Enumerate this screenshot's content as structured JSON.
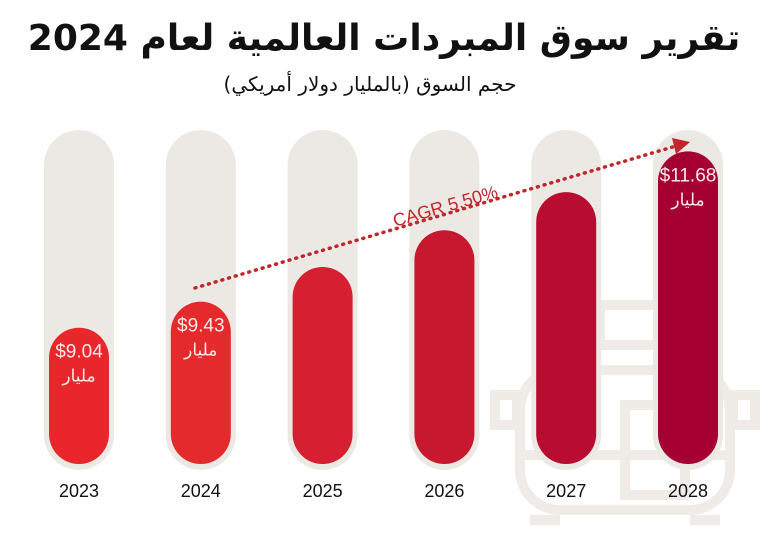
{
  "chart_data": {
    "type": "bar",
    "title": "تقرير سوق المبردات العالمية لعام 2024",
    "subtitle": "حجم السوق (بالمليار دولار أمريكي)",
    "categories": [
      "2023",
      "2024",
      "2025",
      "2026",
      "2027",
      "2028"
    ],
    "values": [
      9.04,
      9.43,
      9.95,
      10.5,
      11.07,
      11.68
    ],
    "data_labels": [
      {
        "index": 0,
        "value": "$9.04",
        "unit": "مليار"
      },
      {
        "index": 1,
        "value": "$9.43",
        "unit": "مليار"
      },
      {
        "index": 5,
        "value": "$11.68",
        "unit": "مليار"
      }
    ],
    "annotation": "CAGR 5.50%",
    "ylim": [
      7,
      12
    ],
    "grid": false,
    "colors": [
      "#e8262b",
      "#e52a2e",
      "#d61f30",
      "#c8182f",
      "#b80d30",
      "#a50031"
    ],
    "track_color": "#ece9e4",
    "annotation_color": "#c0272d"
  }
}
